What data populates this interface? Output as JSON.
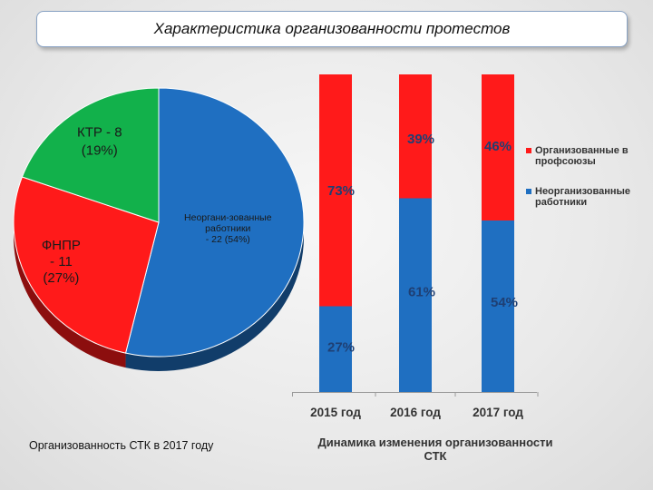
{
  "title": "Характеристика организованности протестов",
  "chart_data": [
    {
      "type": "pie",
      "caption": "Организованность СТК в 2017 году",
      "slices": [
        {
          "name": "Неоргани-зованные работники",
          "value": 22,
          "percent": 54,
          "label_lines": [
            "Неоргани-зованные",
            "работники",
            "- 22 (54%)"
          ],
          "color": "#1f6fc1"
        },
        {
          "name": "ФНПР",
          "value": 11,
          "percent": 27,
          "label_lines": [
            "ФНПР",
            "- 11",
            "(27%)"
          ],
          "color": "#ff1a1a"
        },
        {
          "name": "КТР",
          "value": 8,
          "percent": 19,
          "label_lines": [
            "КТР - 8",
            "(19%)"
          ],
          "color": "#12b14b"
        }
      ]
    },
    {
      "type": "bar",
      "stacked": true,
      "caption_lines": [
        "Динамика изменения организованности",
        "СТК"
      ],
      "categories": [
        "2015 год",
        "2016 год",
        "2017 год"
      ],
      "ylim": [
        0,
        100
      ],
      "series": [
        {
          "name": "Неорганизованные работники",
          "values": [
            27,
            61,
            54
          ],
          "labels": [
            "27%",
            "61%",
            "54%"
          ],
          "color": "#1f6fc1"
        },
        {
          "name": "Организованные в профсоюзы",
          "values": [
            73,
            39,
            46
          ],
          "labels": [
            "73%",
            "39%",
            "46%"
          ],
          "color": "#ff1a1a"
        }
      ],
      "legend": {
        "position": "right",
        "items": [
          {
            "lines": [
              "Организованные в",
              "профсоюзы"
            ],
            "color": "#ff1a1a"
          },
          {
            "lines": [
              "Неорганизованные",
              "работники"
            ],
            "color": "#1f6fc1"
          }
        ]
      }
    }
  ]
}
